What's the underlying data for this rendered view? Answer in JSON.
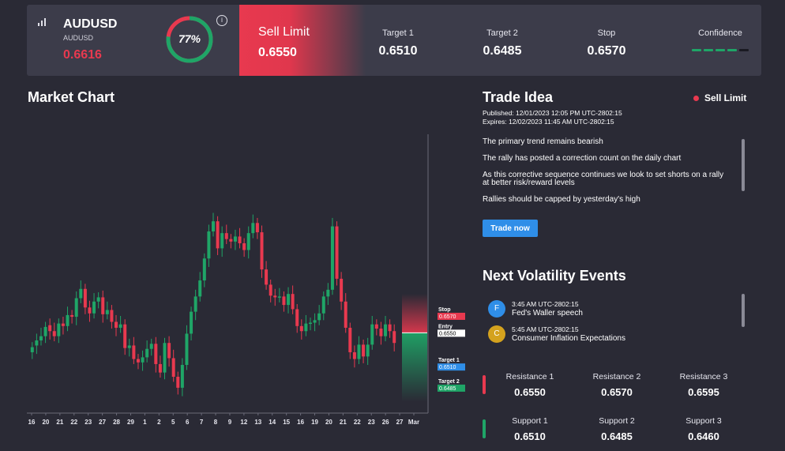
{
  "colors": {
    "bg": "#2a2a35",
    "panel": "#3c3c4a",
    "sell_red": "#e8394f",
    "buy_green": "#1fa567",
    "accent_blue": "#2f8ee8"
  },
  "instrument": {
    "symbol": "AUDUSD",
    "sub": "AUDUSD",
    "price": "0.6616",
    "icon": "bar-chart-icon"
  },
  "gauge": {
    "label": "77%",
    "value": 77,
    "info_icon": "i"
  },
  "order": {
    "type": "Sell Limit",
    "price": "0.6550"
  },
  "targets": [
    {
      "label": "Target 1",
      "value": "0.6510"
    },
    {
      "label": "Target 2",
      "value": "0.6485"
    },
    {
      "label": "Stop",
      "value": "0.6570"
    }
  ],
  "confidence": {
    "label": "Confidence",
    "level": 4,
    "max": 5
  },
  "market_chart": {
    "title": "Market Chart"
  },
  "chart_data": {
    "type": "candlestick",
    "x_tick_labels": [
      "16",
      "20",
      "21",
      "22",
      "23",
      "27",
      "28",
      "29",
      "1",
      "2",
      "5",
      "6",
      "7",
      "8",
      "9",
      "12",
      "13",
      "14",
      "15",
      "16",
      "19",
      "20",
      "21",
      "22",
      "23",
      "26",
      "27",
      "Mar"
    ],
    "ylim": [
      0.6455,
      0.6785
    ],
    "levels": [
      {
        "label": "Stop",
        "value": "0.6570",
        "color": "#e8394f"
      },
      {
        "label": "Entry",
        "value": "0.6550",
        "color": "#ffffff"
      },
      {
        "label": "Target 1",
        "value": "0.6510",
        "color": "#2f8ee8"
      },
      {
        "label": "Target 2",
        "value": "0.6485",
        "color": "#1fa567"
      }
    ],
    "closes": [
      0.6533,
      0.6541,
      0.6546,
      0.6557,
      0.6552,
      0.6546,
      0.6561,
      0.6558,
      0.6571,
      0.6569,
      0.6591,
      0.6602,
      0.658,
      0.6573,
      0.6587,
      0.6592,
      0.6572,
      0.6577,
      0.6563,
      0.6556,
      0.656,
      0.6532,
      0.6535,
      0.6519,
      0.6515,
      0.6521,
      0.6531,
      0.6537,
      0.6513,
      0.6503,
      0.6538,
      0.652,
      0.6498,
      0.6485,
      0.6512,
      0.6549,
      0.6575,
      0.6593,
      0.6612,
      0.6638,
      0.667,
      0.6682,
      0.665,
      0.6668,
      0.6661,
      0.6658,
      0.6664,
      0.6656,
      0.6648,
      0.6668,
      0.668,
      0.6669,
      0.6625,
      0.6607,
      0.6594,
      0.6592,
      0.6593,
      0.6583,
      0.6596,
      0.6578,
      0.6558,
      0.6552,
      0.6561,
      0.6562,
      0.6565,
      0.6573,
      0.6593,
      0.6601,
      0.6676,
      0.6614,
      0.6587,
      0.6556,
      0.6527,
      0.6519,
      0.6536,
      0.6522,
      0.6536,
      0.656,
      0.6555,
      0.6546,
      0.656,
      0.6552,
      0.6538
    ],
    "opens": [
      0.6527,
      0.6535,
      0.6541,
      0.6546,
      0.6559,
      0.6552,
      0.6546,
      0.6561,
      0.6558,
      0.6571,
      0.6569,
      0.6591,
      0.6602,
      0.658,
      0.6573,
      0.6587,
      0.6592,
      0.6572,
      0.6577,
      0.6563,
      0.6556,
      0.656,
      0.6532,
      0.6535,
      0.6519,
      0.6515,
      0.6521,
      0.6531,
      0.6537,
      0.6513,
      0.6503,
      0.6538,
      0.652,
      0.6498,
      0.6485,
      0.6512,
      0.6549,
      0.6575,
      0.6593,
      0.6612,
      0.6638,
      0.667,
      0.6682,
      0.665,
      0.6668,
      0.6661,
      0.6658,
      0.6664,
      0.6656,
      0.6648,
      0.6668,
      0.668,
      0.6669,
      0.6625,
      0.6607,
      0.6594,
      0.6592,
      0.6593,
      0.6583,
      0.6596,
      0.6578,
      0.6558,
      0.6552,
      0.6561,
      0.6562,
      0.6565,
      0.6573,
      0.6593,
      0.6601,
      0.6676,
      0.6614,
      0.6587,
      0.6556,
      0.6527,
      0.6519,
      0.6536,
      0.6522,
      0.6536,
      0.656,
      0.6555,
      0.6546,
      0.656,
      0.6552
    ]
  },
  "trade_idea": {
    "title": "Trade Idea",
    "badge": "Sell Limit",
    "published": "Published:  12/01/2023 12:05 PM UTC-2802:15",
    "expires": "Expires:  12/02/2023 11:45 AM UTC-2802:15",
    "paragraphs": [
      "The primary trend remains bearish",
      "The rally has posted a correction count on the daily chart",
      "As this corrective sequence continues we look to set shorts on a rally at better risk/reward levels",
      "Rallies should be capped by yesterday's high"
    ],
    "button": "Trade now"
  },
  "volatility": {
    "title": "Next Volatility Events",
    "events": [
      {
        "letter": "F",
        "time": "3:45 AM UTC-2802:15",
        "name": "Fed's Waller speech",
        "color": "#2f8ee8"
      },
      {
        "letter": "C",
        "time": "5:45 AM UTC-2802:15",
        "name": "Consumer Inflation Expectations",
        "color": "#d4a21e"
      }
    ]
  },
  "levels": {
    "resistance": [
      {
        "label": "Resistance 1",
        "value": "0.6550"
      },
      {
        "label": "Resistance 2",
        "value": "0.6570"
      },
      {
        "label": "Resistance 3",
        "value": "0.6595"
      }
    ],
    "support": [
      {
        "label": "Support 1",
        "value": "0.6510"
      },
      {
        "label": "Support 2",
        "value": "0.6485"
      },
      {
        "label": "Support 3",
        "value": "0.6460"
      }
    ]
  }
}
